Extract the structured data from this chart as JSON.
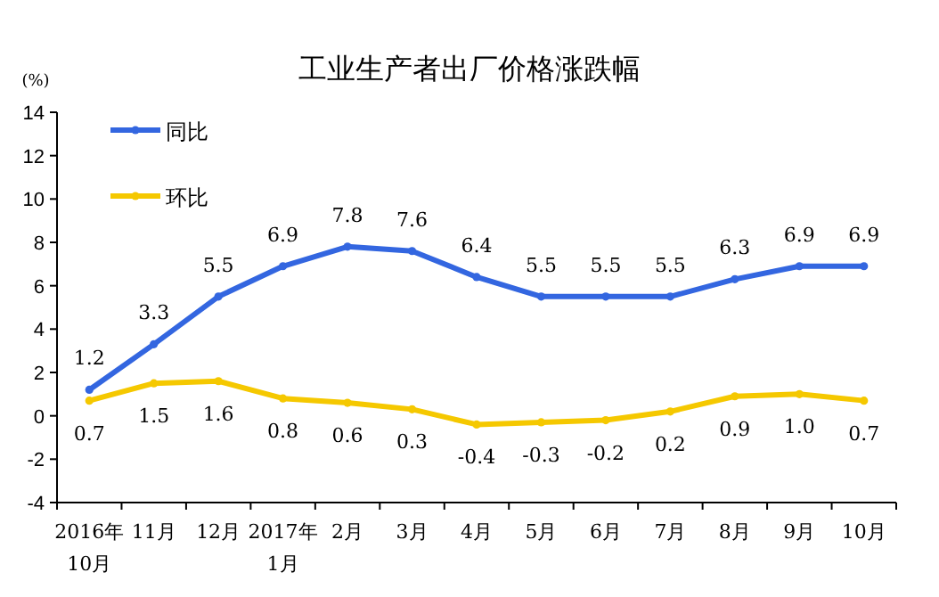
{
  "chart_data": {
    "type": "line",
    "title": "工业生产者出厂价格涨跌幅",
    "ylabel": "(%)",
    "categories": [
      "2016年\n10月",
      "11月",
      "12月",
      "2017年\n1月",
      "2月",
      "3月",
      "4月",
      "5月",
      "6月",
      "7月",
      "8月",
      "9月",
      "10月"
    ],
    "ylim": [
      -4,
      14
    ],
    "yticks": [
      -4,
      -2,
      0,
      2,
      4,
      6,
      8,
      10,
      12,
      14
    ],
    "legend": "top left",
    "marker": "circle",
    "grid": false,
    "series": [
      {
        "name": "同比",
        "color": "#3366e0",
        "values": [
          1.2,
          3.3,
          5.5,
          6.9,
          7.8,
          7.6,
          6.4,
          5.5,
          5.5,
          5.5,
          6.3,
          6.9,
          6.9
        ],
        "value_labels": [
          "1.2",
          "3.3",
          "5.5",
          "6.9",
          "7.8",
          "7.6",
          "6.4",
          "5.5",
          "5.5",
          "5.5",
          "6.3",
          "6.9",
          "6.9"
        ]
      },
      {
        "name": "环比",
        "color": "#f5c800",
        "values": [
          0.7,
          1.5,
          1.6,
          0.8,
          0.6,
          0.3,
          -0.4,
          -0.3,
          -0.2,
          0.2,
          0.9,
          1.0,
          0.7
        ],
        "value_labels": [
          "0.7",
          "1.5",
          "1.6",
          "0.8",
          "0.6",
          "0.3",
          "-0.4",
          "-0.3",
          "-0.2",
          "0.2",
          "0.9",
          "1.0",
          "0.7"
        ]
      }
    ]
  }
}
